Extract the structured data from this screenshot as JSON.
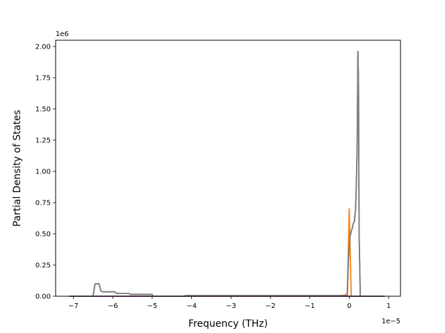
{
  "chart_data": {
    "type": "line",
    "title": "",
    "xlabel": "Frequency (THz)",
    "ylabel": "Partial Density of States",
    "x_offset_label": "1e−5",
    "y_offset_label": "1e6",
    "x_scale_factor": 1e-05,
    "y_scale_factor": 1000000,
    "xlim": [
      -7.45,
      1.3
    ],
    "ylim": [
      0,
      2.05
    ],
    "xticks": [
      -7,
      -6,
      -5,
      -4,
      -3,
      -2,
      -1,
      0,
      1
    ],
    "xtick_labels": [
      "−7",
      "−6",
      "−5",
      "−4",
      "−3",
      "−2",
      "−1",
      "0",
      "1"
    ],
    "yticks": [
      0,
      0.25,
      0.5,
      0.75,
      1.0,
      1.25,
      1.5,
      1.75,
      2.0
    ],
    "ytick_labels": [
      "0.00",
      "0.25",
      "0.50",
      "0.75",
      "1.00",
      "1.25",
      "1.50",
      "1.75",
      "2.00"
    ],
    "grid": false,
    "legend": false,
    "series": [
      {
        "color": "#1f77b4",
        "x": [
          -7.1,
          0.9
        ],
        "y": [
          0,
          0
        ]
      },
      {
        "color": "#ff7f0e",
        "x": [
          -7.1,
          -0.3,
          -0.1,
          -0.05,
          0.0,
          0.02,
          0.05,
          0.1,
          0.3,
          0.9
        ],
        "y": [
          0,
          0,
          0.01,
          0.02,
          0.7,
          0.4,
          0.0,
          0,
          0,
          0
        ]
      },
      {
        "color": "#2ca02c",
        "x": [
          -7.1,
          0.9
        ],
        "y": [
          0,
          0
        ]
      },
      {
        "color": "#d62728",
        "x": [
          -7.1,
          0.9
        ],
        "y": [
          0,
          0
        ]
      },
      {
        "color": "#9467bd",
        "x": [
          -7.1,
          0.9
        ],
        "y": [
          0,
          0
        ]
      },
      {
        "color": "#8c564b",
        "x": [
          -7.1,
          -6.5,
          -6.45,
          -6.42,
          -6.35,
          -6.3,
          -6.25,
          -5.95,
          -5.9,
          -5.6,
          -5.55,
          -5.0,
          -4.98,
          -4.2,
          -4.15,
          -0.05,
          -0.02,
          0.02,
          0.05,
          0.08,
          0.1,
          0.13,
          0.16,
          0.18,
          0.2,
          0.22,
          0.235,
          0.25,
          0.28,
          0.9
        ],
        "y": [
          0,
          0,
          0.1,
          0.1,
          0.1,
          0.04,
          0.035,
          0.035,
          0.023,
          0.023,
          0.015,
          0.015,
          0,
          0,
          0.005,
          0.005,
          0.3,
          0.48,
          0.52,
          0.55,
          0.58,
          0.6,
          0.7,
          0.9,
          1.2,
          1.96,
          1.7,
          0.5,
          0,
          0
        ]
      },
      {
        "color": "#7f7f7f",
        "x": [
          -7.1,
          -6.5,
          -6.45,
          -6.42,
          -6.35,
          -6.3,
          -6.25,
          -5.95,
          -5.9,
          -5.6,
          -5.55,
          -5.0,
          -4.98,
          -4.2,
          -4.15,
          -0.05,
          -0.02,
          0.02,
          0.05,
          0.08,
          0.1,
          0.13,
          0.16,
          0.18,
          0.2,
          0.22,
          0.235,
          0.25,
          0.28,
          0.9
        ],
        "y": [
          0,
          0,
          0.1,
          0.1,
          0.1,
          0.04,
          0.035,
          0.035,
          0.023,
          0.023,
          0.015,
          0.015,
          0,
          0,
          0.005,
          0.005,
          0.3,
          0.48,
          0.52,
          0.55,
          0.58,
          0.6,
          0.7,
          0.9,
          1.2,
          1.96,
          1.7,
          0.5,
          0,
          0
        ]
      }
    ]
  }
}
